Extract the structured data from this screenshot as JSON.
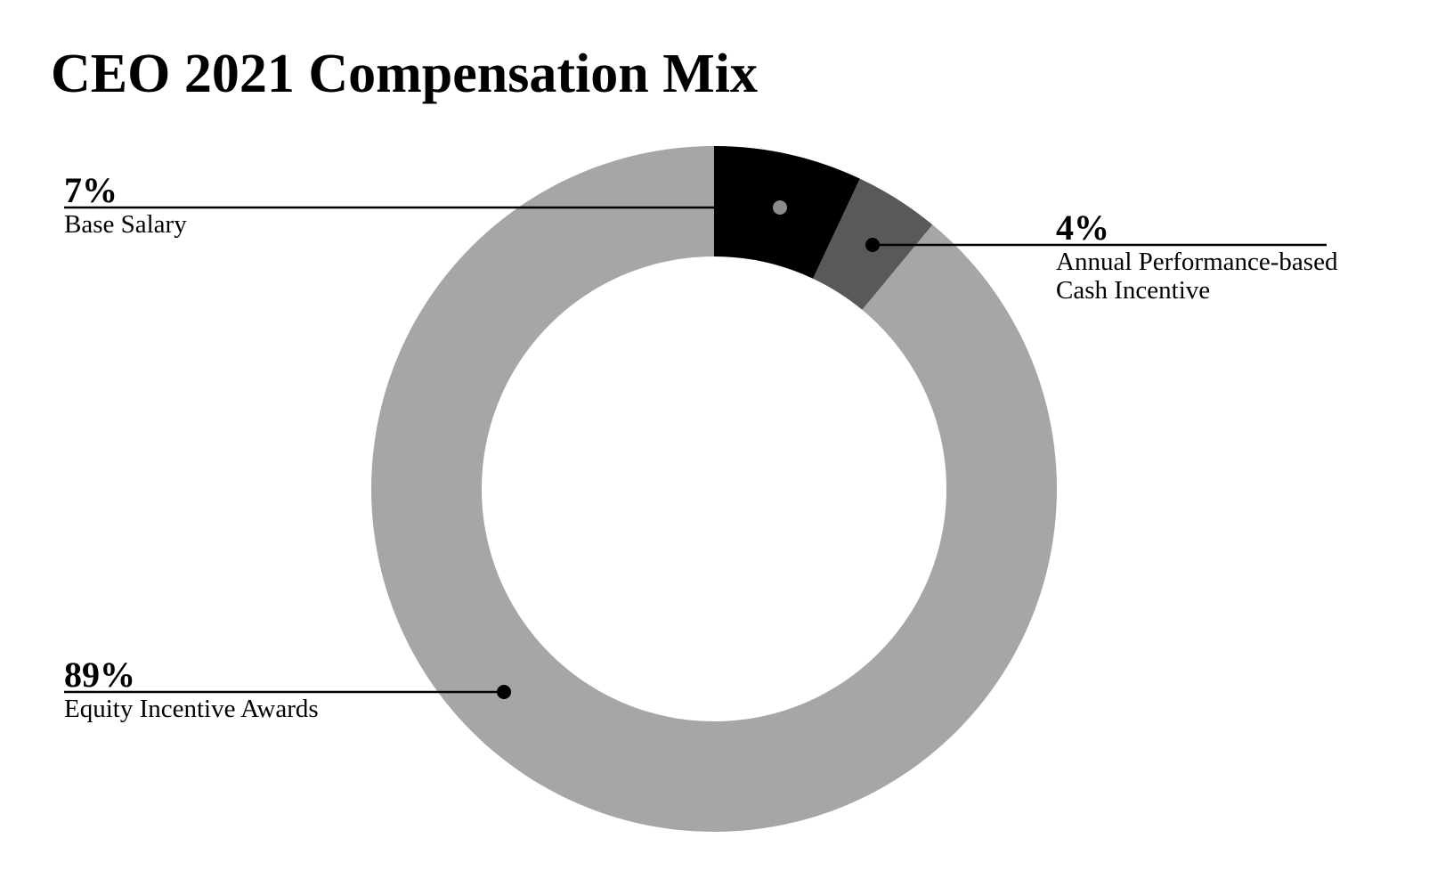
{
  "title": "CEO 2021 Compensation Mix",
  "chart_data": {
    "type": "pie",
    "subtype": "donut",
    "title": "CEO 2021 Compensation Mix",
    "direction": "clockwise",
    "start_angle_deg": 0,
    "inner_radius_ratio": 0.678,
    "background_color": "#ffffff",
    "legend": "none",
    "annotation_style": "leader-line-with-dot",
    "slices": [
      {
        "label": "Base Salary",
        "pct_label": "7%",
        "value": 7,
        "color": "#000000",
        "dot_color": "#8c8c8c"
      },
      {
        "label": "Annual Performance-based\nCash Incentive",
        "pct_label": "4%",
        "value": 4,
        "color": "#595959",
        "dot_color": "#000000"
      },
      {
        "label": "Equity Incentive Awards",
        "pct_label": "89%",
        "value": 89,
        "color": "#a6a6a6",
        "dot_color": "#000000"
      }
    ]
  }
}
